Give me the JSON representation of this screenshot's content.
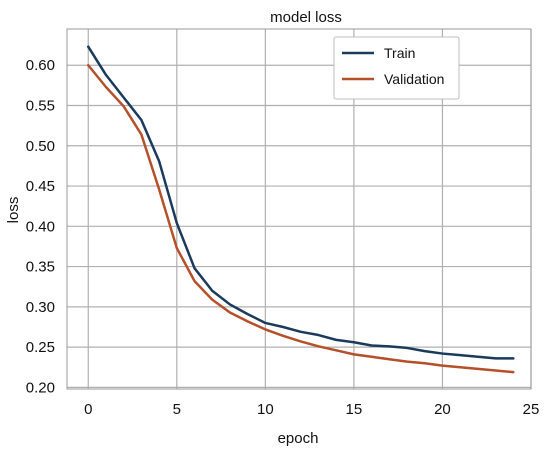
{
  "chart_data": {
    "type": "line",
    "title": "model loss",
    "xlabel": "epoch",
    "ylabel": "loss",
    "xlim": [
      -1.2,
      25
    ],
    "ylim": [
      0.198,
      0.645
    ],
    "xticks": [
      0,
      5,
      10,
      15,
      20,
      25
    ],
    "yticks": [
      0.2,
      0.25,
      0.3,
      0.35,
      0.4,
      0.45,
      0.5,
      0.55,
      0.6
    ],
    "xtick_labels": [
      "0",
      "5",
      "10",
      "15",
      "20",
      "25"
    ],
    "ytick_labels": [
      "0.20",
      "0.25",
      "0.30",
      "0.35",
      "0.40",
      "0.45",
      "0.50",
      "0.55",
      "0.60"
    ],
    "grid": true,
    "legend_position": "top-right",
    "x": [
      0,
      1,
      2,
      3,
      4,
      5,
      6,
      7,
      8,
      9,
      10,
      11,
      12,
      13,
      14,
      15,
      16,
      17,
      18,
      19,
      20,
      21,
      22,
      23,
      24
    ],
    "series": [
      {
        "name": "Train",
        "color": "#1b3a5c",
        "values": [
          0.623,
          0.588,
          0.56,
          0.532,
          0.481,
          0.404,
          0.348,
          0.32,
          0.303,
          0.291,
          0.28,
          0.275,
          0.269,
          0.265,
          0.259,
          0.256,
          0.252,
          0.251,
          0.249,
          0.245,
          0.242,
          0.24,
          0.238,
          0.236,
          0.236
        ]
      },
      {
        "name": "Validation",
        "color": "#b5502a",
        "values": [
          0.6,
          0.573,
          0.549,
          0.514,
          0.446,
          0.373,
          0.332,
          0.309,
          0.293,
          0.282,
          0.272,
          0.264,
          0.257,
          0.251,
          0.246,
          0.241,
          0.238,
          0.235,
          0.232,
          0.23,
          0.227,
          0.225,
          0.223,
          0.221,
          0.219
        ]
      }
    ]
  }
}
